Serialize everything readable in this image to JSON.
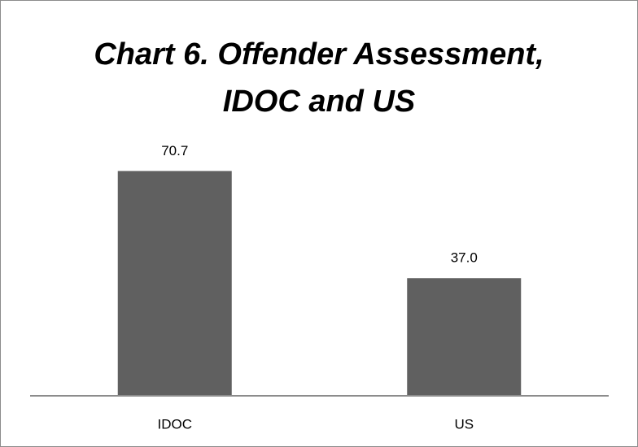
{
  "chart_data": {
    "type": "bar",
    "title": "Chart 6. Offender Assessment, IDOC and US",
    "categories": [
      "IDOC",
      "US"
    ],
    "values": [
      70.7,
      37.0
    ],
    "value_labels": [
      "70.7",
      "37.0"
    ],
    "color": "#606060",
    "ylim": [
      0,
      80
    ]
  }
}
